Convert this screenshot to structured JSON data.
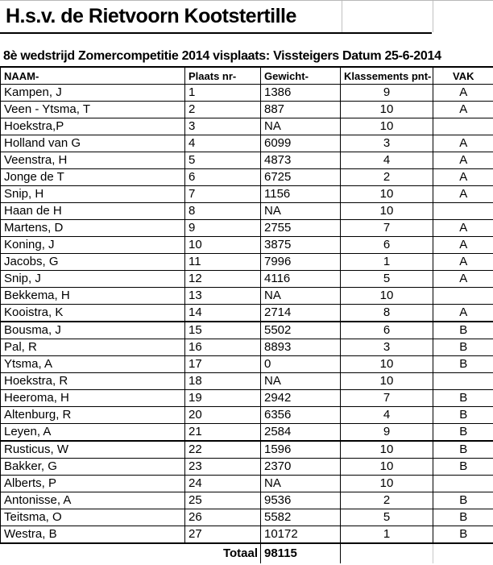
{
  "page": {
    "title": "H.s.v. de Rietvoorn Kootstertille",
    "subtitle": "8è wedstrijd Zomercompetitie 2014 visplaats: Vissteigers Datum 25-6-2014"
  },
  "table": {
    "headers": [
      "NAAM-",
      "Plaats nr-",
      "Gewicht-",
      "Klassements pnt-",
      "VAK"
    ],
    "rows": [
      {
        "naam": "Kampen, J",
        "plaats": "1",
        "gewicht": "1386",
        "pnt": "9",
        "vak": "A"
      },
      {
        "naam": "Veen - Ytsma, T",
        "plaats": "2",
        "gewicht": "887",
        "pnt": "10",
        "vak": "A"
      },
      {
        "naam": "Hoekstra,P",
        "plaats": "3",
        "gewicht": "NA",
        "pnt": "10",
        "vak": ""
      },
      {
        "naam": "Holland van G",
        "plaats": "4",
        "gewicht": "6099",
        "pnt": "3",
        "vak": "A"
      },
      {
        "naam": "Veenstra, H",
        "plaats": "5",
        "gewicht": "4873",
        "pnt": "4",
        "vak": "A"
      },
      {
        "naam": "Jonge de T",
        "plaats": "6",
        "gewicht": "6725",
        "pnt": "2",
        "vak": "A"
      },
      {
        "naam": "Snip, H",
        "plaats": "7",
        "gewicht": "1156",
        "pnt": "10",
        "vak": "A"
      },
      {
        "naam": "Haan de H",
        "plaats": "8",
        "gewicht": "NA",
        "pnt": "10",
        "vak": ""
      },
      {
        "naam": "Martens, D",
        "plaats": "9",
        "gewicht": "2755",
        "pnt": "7",
        "vak": "A"
      },
      {
        "naam": "Koning, J",
        "plaats": "10",
        "gewicht": "3875",
        "pnt": "6",
        "vak": "A"
      },
      {
        "naam": "Jacobs, G",
        "plaats": "11",
        "gewicht": "7996",
        "pnt": "1",
        "vak": "A"
      },
      {
        "naam": "Snip, J",
        "plaats": "12",
        "gewicht": "4116",
        "pnt": "5",
        "vak": "A"
      },
      {
        "naam": "Bekkema, H",
        "plaats": "13",
        "gewicht": "NA",
        "pnt": "10",
        "vak": ""
      },
      {
        "naam": "Kooistra, K",
        "plaats": "14",
        "gewicht": "2714",
        "pnt": "8",
        "vak": "A"
      },
      {
        "naam": "Bousma, J",
        "plaats": "15",
        "gewicht": "5502",
        "pnt": "6",
        "vak": "B"
      },
      {
        "naam": "Pal, R",
        "plaats": "16",
        "gewicht": "8893",
        "pnt": "3",
        "vak": "B"
      },
      {
        "naam": "Ytsma, A",
        "plaats": "17",
        "gewicht": "0",
        "pnt": "10",
        "vak": "B"
      },
      {
        "naam": "Hoekstra, R",
        "plaats": "18",
        "gewicht": "NA",
        "pnt": "10",
        "vak": ""
      },
      {
        "naam": "Heeroma, H",
        "plaats": "19",
        "gewicht": "2942",
        "pnt": "7",
        "vak": "B"
      },
      {
        "naam": "Altenburg, R",
        "plaats": "20",
        "gewicht": "6356",
        "pnt": "4",
        "vak": "B"
      },
      {
        "naam": "Leyen, A",
        "plaats": "21",
        "gewicht": "2584",
        "pnt": "9",
        "vak": "B"
      },
      {
        "naam": "Rusticus, W",
        "plaats": "22",
        "gewicht": "1596",
        "pnt": "10",
        "vak": "B"
      },
      {
        "naam": "Bakker, G",
        "plaats": "23",
        "gewicht": "2370",
        "pnt": "10",
        "vak": "B"
      },
      {
        "naam": "Alberts, P",
        "plaats": "24",
        "gewicht": "NA",
        "pnt": "10",
        "vak": ""
      },
      {
        "naam": "Antonisse, A",
        "plaats": "25",
        "gewicht": "9536",
        "pnt": "2",
        "vak": "B"
      },
      {
        "naam": "Teitsma, O",
        "plaats": "26",
        "gewicht": "5582",
        "pnt": "5",
        "vak": "B"
      },
      {
        "naam": "Westra, B",
        "plaats": "27",
        "gewicht": "10172",
        "pnt": "1",
        "vak": "B"
      }
    ],
    "thick_border_after_plaats": [
      "14",
      "21"
    ],
    "totaal": {
      "label": "Totaal",
      "value": "98115"
    }
  },
  "colors": {
    "border": "#000000",
    "gridline": "#c0c0c0",
    "text": "#000000",
    "background": "#ffffff"
  }
}
